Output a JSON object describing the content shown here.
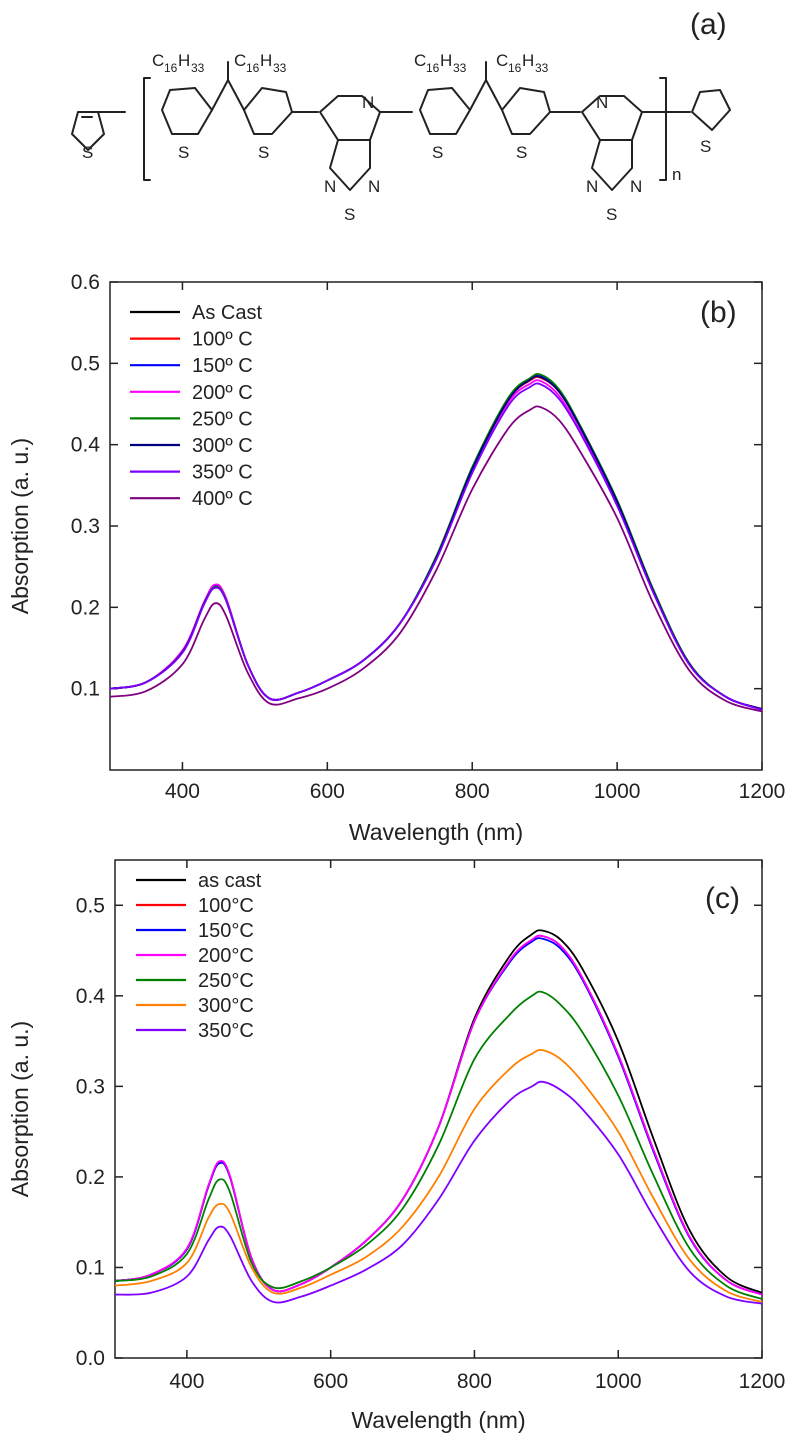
{
  "panel_a": {
    "label": "(a)",
    "substituent_main": "C",
    "substituent_count": "16",
    "substituent_h": "H",
    "substituent_h_count": "33",
    "atom_s": "S",
    "atom_n": "N",
    "repeat_n": "n"
  },
  "chart_data": [
    {
      "type": "line",
      "panel_label": "(b)",
      "title": "",
      "xlabel": "Wavelength (nm)",
      "ylabel": "Absorption (a. u.)",
      "xlim": [
        300,
        1200
      ],
      "ylim": [
        0.0,
        0.6
      ],
      "xticks": [
        400,
        600,
        800,
        1000,
        1200
      ],
      "xtick_labels": [
        "400",
        "600",
        "800",
        "1000",
        "1200"
      ],
      "yticks": [
        0.1,
        0.2,
        0.3,
        0.4,
        0.5,
        0.6
      ],
      "ytick_labels": [
        "0.1",
        "0.2",
        "0.3",
        "0.4",
        "0.5",
        "0.6"
      ],
      "grid": false,
      "legend_position": "top-left",
      "x": [
        300,
        350,
        400,
        430,
        445,
        460,
        490,
        520,
        560,
        600,
        650,
        700,
        750,
        800,
        850,
        880,
        895,
        920,
        950,
        1000,
        1050,
        1100,
        1150,
        1200
      ],
      "series": [
        {
          "name": "As Cast",
          "color": "#000000",
          "values": [
            0.1,
            0.108,
            0.145,
            0.205,
            0.225,
            0.21,
            0.13,
            0.088,
            0.095,
            0.11,
            0.135,
            0.18,
            0.26,
            0.37,
            0.455,
            0.48,
            0.483,
            0.465,
            0.42,
            0.33,
            0.22,
            0.13,
            0.09,
            0.075
          ]
        },
        {
          "name": "100º C",
          "color": "#ff0000",
          "values": [
            0.1,
            0.108,
            0.145,
            0.205,
            0.225,
            0.21,
            0.13,
            0.088,
            0.095,
            0.11,
            0.135,
            0.18,
            0.26,
            0.37,
            0.455,
            0.479,
            0.482,
            0.465,
            0.42,
            0.33,
            0.22,
            0.13,
            0.09,
            0.075
          ]
        },
        {
          "name": "150º C",
          "color": "#0000ff",
          "values": [
            0.1,
            0.108,
            0.146,
            0.206,
            0.226,
            0.211,
            0.13,
            0.088,
            0.095,
            0.11,
            0.135,
            0.18,
            0.26,
            0.372,
            0.456,
            0.48,
            0.484,
            0.466,
            0.42,
            0.33,
            0.22,
            0.13,
            0.09,
            0.075
          ]
        },
        {
          "name": "200º C",
          "color": "#ff00ff",
          "values": [
            0.1,
            0.108,
            0.147,
            0.207,
            0.228,
            0.212,
            0.13,
            0.088,
            0.095,
            0.11,
            0.135,
            0.18,
            0.26,
            0.37,
            0.452,
            0.475,
            0.478,
            0.46,
            0.415,
            0.328,
            0.22,
            0.13,
            0.09,
            0.075
          ]
        },
        {
          "name": "250º C",
          "color": "#008000",
          "values": [
            0.1,
            0.108,
            0.145,
            0.205,
            0.225,
            0.21,
            0.13,
            0.088,
            0.095,
            0.11,
            0.135,
            0.18,
            0.262,
            0.372,
            0.458,
            0.482,
            0.486,
            0.468,
            0.422,
            0.332,
            0.222,
            0.131,
            0.09,
            0.075
          ]
        },
        {
          "name": "300º C",
          "color": "#000080",
          "values": [
            0.1,
            0.108,
            0.145,
            0.205,
            0.224,
            0.209,
            0.13,
            0.088,
            0.095,
            0.11,
            0.135,
            0.18,
            0.26,
            0.37,
            0.455,
            0.48,
            0.483,
            0.465,
            0.42,
            0.33,
            0.22,
            0.13,
            0.09,
            0.075
          ]
        },
        {
          "name": "350º C",
          "color": "#8000ff",
          "values": [
            0.1,
            0.108,
            0.144,
            0.204,
            0.224,
            0.209,
            0.13,
            0.088,
            0.095,
            0.11,
            0.135,
            0.18,
            0.258,
            0.365,
            0.448,
            0.471,
            0.474,
            0.456,
            0.413,
            0.325,
            0.218,
            0.129,
            0.09,
            0.074
          ]
        },
        {
          "name": "400º C",
          "color": "#800080",
          "values": [
            0.09,
            0.097,
            0.13,
            0.185,
            0.205,
            0.19,
            0.12,
            0.082,
            0.088,
            0.1,
            0.125,
            0.168,
            0.245,
            0.345,
            0.42,
            0.443,
            0.446,
            0.43,
            0.39,
            0.31,
            0.205,
            0.122,
            0.085,
            0.072
          ]
        }
      ]
    },
    {
      "type": "line",
      "panel_label": "(c)",
      "title": "",
      "xlabel": "Wavelength (nm)",
      "ylabel": "Absorption (a. u.)",
      "xlim": [
        300,
        1200
      ],
      "ylim": [
        0.0,
        0.55
      ],
      "xticks": [
        400,
        600,
        800,
        1000,
        1200
      ],
      "xtick_labels": [
        "400",
        "600",
        "800",
        "1000",
        "1200"
      ],
      "yticks": [
        0.0,
        0.1,
        0.2,
        0.3,
        0.4,
        0.5
      ],
      "ytick_labels": [
        "0.0",
        "0.1",
        "0.2",
        "0.3",
        "0.4",
        "0.5"
      ],
      "grid": false,
      "legend_position": "top-left",
      "x": [
        300,
        350,
        400,
        430,
        445,
        460,
        490,
        520,
        560,
        600,
        650,
        700,
        750,
        800,
        850,
        880,
        895,
        920,
        950,
        1000,
        1050,
        1100,
        1150,
        1200
      ],
      "series": [
        {
          "name": "as cast",
          "color": "#000000",
          "values": [
            0.085,
            0.092,
            0.12,
            0.19,
            0.215,
            0.2,
            0.11,
            0.075,
            0.082,
            0.1,
            0.13,
            0.175,
            0.255,
            0.375,
            0.445,
            0.468,
            0.472,
            0.462,
            0.43,
            0.35,
            0.24,
            0.14,
            0.09,
            0.072
          ]
        },
        {
          "name": "100°C",
          "color": "#ff0000",
          "values": [
            0.085,
            0.092,
            0.12,
            0.19,
            0.215,
            0.2,
            0.11,
            0.075,
            0.082,
            0.1,
            0.13,
            0.175,
            0.255,
            0.372,
            0.44,
            0.462,
            0.466,
            0.455,
            0.42,
            0.335,
            0.228,
            0.133,
            0.086,
            0.07
          ]
        },
        {
          "name": "150°C",
          "color": "#0000ff",
          "values": [
            0.085,
            0.092,
            0.12,
            0.19,
            0.215,
            0.2,
            0.11,
            0.075,
            0.082,
            0.1,
            0.13,
            0.175,
            0.255,
            0.372,
            0.438,
            0.46,
            0.463,
            0.452,
            0.418,
            0.333,
            0.226,
            0.132,
            0.086,
            0.07
          ]
        },
        {
          "name": "200°C",
          "color": "#ff00ff",
          "values": [
            0.085,
            0.092,
            0.121,
            0.191,
            0.217,
            0.201,
            0.11,
            0.075,
            0.082,
            0.1,
            0.13,
            0.175,
            0.255,
            0.372,
            0.44,
            0.462,
            0.466,
            0.455,
            0.42,
            0.335,
            0.228,
            0.133,
            0.086,
            0.07
          ]
        },
        {
          "name": "250°C",
          "color": "#008000",
          "values": [
            0.085,
            0.09,
            0.115,
            0.175,
            0.197,
            0.183,
            0.105,
            0.078,
            0.085,
            0.1,
            0.125,
            0.165,
            0.235,
            0.33,
            0.38,
            0.4,
            0.404,
            0.39,
            0.36,
            0.29,
            0.2,
            0.12,
            0.08,
            0.065
          ]
        },
        {
          "name": "300°C",
          "color": "#ff8000",
          "values": [
            0.08,
            0.085,
            0.105,
            0.155,
            0.17,
            0.16,
            0.1,
            0.072,
            0.078,
            0.092,
            0.112,
            0.145,
            0.2,
            0.275,
            0.32,
            0.336,
            0.34,
            0.33,
            0.305,
            0.25,
            0.175,
            0.108,
            0.074,
            0.062
          ]
        },
        {
          "name": "350°C",
          "color": "#8000ff",
          "values": [
            0.07,
            0.072,
            0.09,
            0.13,
            0.145,
            0.135,
            0.085,
            0.062,
            0.068,
            0.08,
            0.098,
            0.125,
            0.175,
            0.24,
            0.285,
            0.3,
            0.305,
            0.296,
            0.275,
            0.225,
            0.155,
            0.095,
            0.068,
            0.06
          ]
        }
      ]
    }
  ]
}
